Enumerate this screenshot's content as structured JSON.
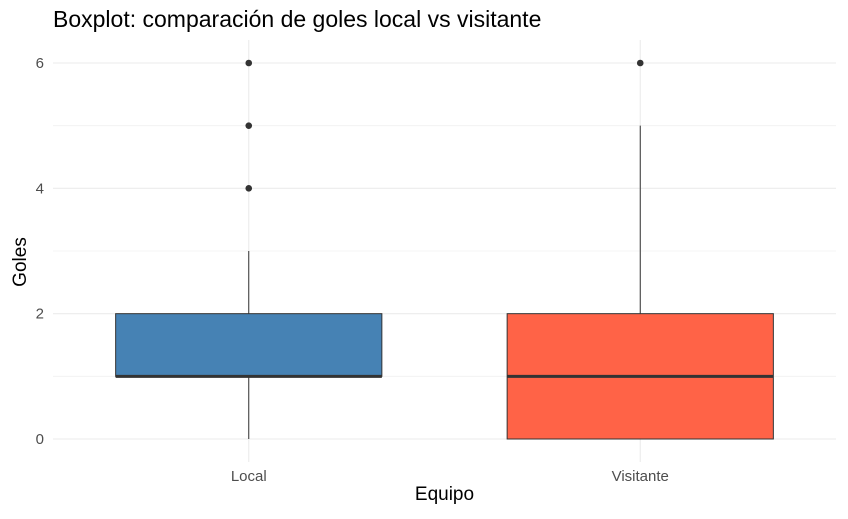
{
  "chart_data": {
    "type": "boxplot",
    "title": "Boxplot: comparación de goles local vs visitante",
    "xlabel": "Equipo",
    "ylabel": "Goles",
    "ylim": [
      -0.3,
      6.3
    ],
    "yticks": [
      0,
      2,
      4,
      6
    ],
    "grid": true,
    "categories": [
      "Local",
      "Visitante"
    ],
    "boxes": [
      {
        "category": "Local",
        "color": "#4682B4",
        "whisker_low": 0,
        "q1": 1,
        "median": 1,
        "q3": 2,
        "whisker_high": 3,
        "outliers": [
          4,
          5,
          6
        ]
      },
      {
        "category": "Visitante",
        "color": "#FF6347",
        "whisker_low": 0,
        "q1": 0,
        "median": 1,
        "q3": 2,
        "whisker_high": 5,
        "outliers": [
          6
        ]
      }
    ]
  }
}
